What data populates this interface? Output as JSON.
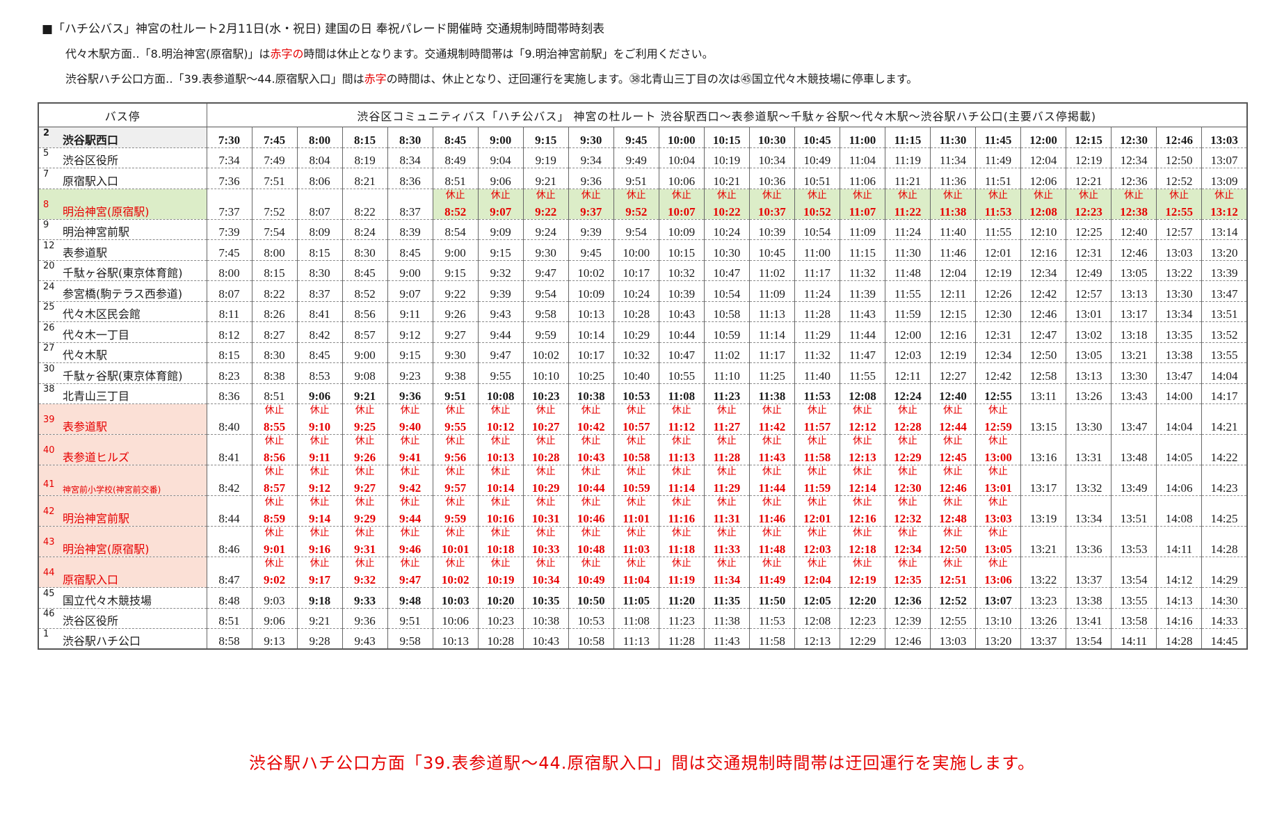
{
  "title": "■「ハチ公バス」神宮の杜ルート2月11日(水・祝日) 建国の日 奉祝パレード開催時 交通規制時間帯時刻表",
  "notes": {
    "line1": {
      "a": "代々木駅方面‥「8.明治神宮(原宿駅)」は",
      "red": "赤字の",
      "b": "時間は休止となります。交通規制時間帯は「9.明治神宮前駅」をご利用ください。"
    },
    "line2": {
      "a": "渋谷駅ハチ公口方面‥「39.表参道駅～44.原宿駅入口」間は",
      "red": "赤字",
      "b": "の時間は、休止となり、迂回運行を実施します。㊳北青山三丁目の次は㊺国立代々木競技場に停車します。"
    }
  },
  "table": {
    "stop_header": "バス停",
    "route_header": "渋谷区コミュニティバス「ハチ公バス」 神宮の杜ルート 渋谷駅西口～表参道駅～千駄ヶ谷駅～代々木駅～渋谷駅ハチ公口(主要バス停掲載)",
    "suspended_label": "休止",
    "rows": [
      {
        "no": "2",
        "name": "渋谷駅西口",
        "style": "grey",
        "first": true,
        "bold_from": 0,
        "bold_to": 23,
        "susp_from": -1,
        "susp_to": -1,
        "times": [
          "7:30",
          "7:45",
          "8:00",
          "8:15",
          "8:30",
          "8:45",
          "9:00",
          "9:15",
          "9:30",
          "9:45",
          "10:00",
          "10:15",
          "10:30",
          "10:45",
          "11:00",
          "11:15",
          "11:30",
          "11:45",
          "12:00",
          "12:15",
          "12:30",
          "12:46",
          "13:03"
        ]
      },
      {
        "no": "5",
        "name": "渋谷区役所",
        "style": "",
        "bold_from": -1,
        "bold_to": -1,
        "susp_from": -1,
        "susp_to": -1,
        "times": [
          "7:34",
          "7:49",
          "8:04",
          "8:19",
          "8:34",
          "8:49",
          "9:04",
          "9:19",
          "9:34",
          "9:49",
          "10:04",
          "10:19",
          "10:34",
          "10:49",
          "11:04",
          "11:19",
          "11:34",
          "11:49",
          "12:04",
          "12:19",
          "12:34",
          "12:50",
          "13:07"
        ]
      },
      {
        "no": "7",
        "name": "原宿駅入口",
        "style": "",
        "bold_from": -1,
        "bold_to": -1,
        "susp_from": -1,
        "susp_to": -1,
        "times": [
          "7:36",
          "7:51",
          "8:06",
          "8:21",
          "8:36",
          "8:51",
          "9:06",
          "9:21",
          "9:36",
          "9:51",
          "10:06",
          "10:21",
          "10:36",
          "10:51",
          "11:06",
          "11:21",
          "11:36",
          "11:51",
          "12:06",
          "12:21",
          "12:36",
          "12:52",
          "13:09"
        ]
      },
      {
        "no": "8",
        "name": "明治神宮(原宿駅)",
        "style": "green",
        "bold_from": -1,
        "bold_to": -1,
        "susp_from": 5,
        "susp_to": 22,
        "tall": true,
        "times": [
          "7:37",
          "7:52",
          "8:07",
          "8:22",
          "8:37",
          "8:52",
          "9:07",
          "9:22",
          "9:37",
          "9:52",
          "10:07",
          "10:22",
          "10:37",
          "10:52",
          "11:07",
          "11:22",
          "11:38",
          "11:53",
          "12:08",
          "12:23",
          "12:38",
          "12:55",
          "13:12"
        ]
      },
      {
        "no": "9",
        "name": "明治神宮前駅",
        "style": "",
        "bold_from": -1,
        "bold_to": -1,
        "susp_from": -1,
        "susp_to": -1,
        "times": [
          "7:39",
          "7:54",
          "8:09",
          "8:24",
          "8:39",
          "8:54",
          "9:09",
          "9:24",
          "9:39",
          "9:54",
          "10:09",
          "10:24",
          "10:39",
          "10:54",
          "11:09",
          "11:24",
          "11:40",
          "11:55",
          "12:10",
          "12:25",
          "12:40",
          "12:57",
          "13:14"
        ]
      },
      {
        "no": "12",
        "name": "表参道駅",
        "style": "",
        "bold_from": -1,
        "bold_to": -1,
        "susp_from": -1,
        "susp_to": -1,
        "times": [
          "7:45",
          "8:00",
          "8:15",
          "8:30",
          "8:45",
          "9:00",
          "9:15",
          "9:30",
          "9:45",
          "10:00",
          "10:15",
          "10:30",
          "10:45",
          "11:00",
          "11:15",
          "11:30",
          "11:46",
          "12:01",
          "12:16",
          "12:31",
          "12:46",
          "13:03",
          "13:20"
        ]
      },
      {
        "no": "20",
        "name": "千駄ヶ谷駅(東京体育館)",
        "style": "",
        "bold_from": -1,
        "bold_to": -1,
        "susp_from": -1,
        "susp_to": -1,
        "times": [
          "8:00",
          "8:15",
          "8:30",
          "8:45",
          "9:00",
          "9:15",
          "9:32",
          "9:47",
          "10:02",
          "10:17",
          "10:32",
          "10:47",
          "11:02",
          "11:17",
          "11:32",
          "11:48",
          "12:04",
          "12:19",
          "12:34",
          "12:49",
          "13:05",
          "13:22",
          "13:39"
        ]
      },
      {
        "no": "24",
        "name": "参宮橋(駒テラス西参道)",
        "style": "",
        "bold_from": -1,
        "bold_to": -1,
        "susp_from": -1,
        "susp_to": -1,
        "times": [
          "8:07",
          "8:22",
          "8:37",
          "8:52",
          "9:07",
          "9:22",
          "9:39",
          "9:54",
          "10:09",
          "10:24",
          "10:39",
          "10:54",
          "11:09",
          "11:24",
          "11:39",
          "11:55",
          "12:11",
          "12:26",
          "12:42",
          "12:57",
          "13:13",
          "13:30",
          "13:47"
        ]
      },
      {
        "no": "25",
        "name": "代々木区民会館",
        "style": "",
        "bold_from": -1,
        "bold_to": -1,
        "susp_from": -1,
        "susp_to": -1,
        "times": [
          "8:11",
          "8:26",
          "8:41",
          "8:56",
          "9:11",
          "9:26",
          "9:43",
          "9:58",
          "10:13",
          "10:28",
          "10:43",
          "10:58",
          "11:13",
          "11:28",
          "11:43",
          "11:59",
          "12:15",
          "12:30",
          "12:46",
          "13:01",
          "13:17",
          "13:34",
          "13:51"
        ]
      },
      {
        "no": "26",
        "name": "代々木一丁目",
        "style": "",
        "bold_from": -1,
        "bold_to": -1,
        "susp_from": -1,
        "susp_to": -1,
        "times": [
          "8:12",
          "8:27",
          "8:42",
          "8:57",
          "9:12",
          "9:27",
          "9:44",
          "9:59",
          "10:14",
          "10:29",
          "10:44",
          "10:59",
          "11:14",
          "11:29",
          "11:44",
          "12:00",
          "12:16",
          "12:31",
          "12:47",
          "13:02",
          "13:18",
          "13:35",
          "13:52"
        ]
      },
      {
        "no": "27",
        "name": "代々木駅",
        "style": "",
        "bold_from": -1,
        "bold_to": -1,
        "susp_from": -1,
        "susp_to": -1,
        "times": [
          "8:15",
          "8:30",
          "8:45",
          "9:00",
          "9:15",
          "9:30",
          "9:47",
          "10:02",
          "10:17",
          "10:32",
          "10:47",
          "11:02",
          "11:17",
          "11:32",
          "11:47",
          "12:03",
          "12:19",
          "12:34",
          "12:50",
          "13:05",
          "13:21",
          "13:38",
          "13:55"
        ]
      },
      {
        "no": "30",
        "name": "千駄ヶ谷駅(東京体育館)",
        "style": "",
        "bold_from": -1,
        "bold_to": -1,
        "susp_from": -1,
        "susp_to": -1,
        "times": [
          "8:23",
          "8:38",
          "8:53",
          "9:08",
          "9:23",
          "9:38",
          "9:55",
          "10:10",
          "10:25",
          "10:40",
          "10:55",
          "11:10",
          "11:25",
          "11:40",
          "11:55",
          "12:11",
          "12:27",
          "12:42",
          "12:58",
          "13:13",
          "13:30",
          "13:47",
          "14:04"
        ]
      },
      {
        "no": "38",
        "name": "北青山三丁目",
        "style": "",
        "bold_from": 2,
        "bold_to": 17,
        "susp_from": -1,
        "susp_to": -1,
        "times": [
          "8:36",
          "8:51",
          "9:06",
          "9:21",
          "9:36",
          "9:51",
          "10:08",
          "10:23",
          "10:38",
          "10:53",
          "11:08",
          "11:23",
          "11:38",
          "11:53",
          "12:08",
          "12:24",
          "12:40",
          "12:55",
          "13:11",
          "13:26",
          "13:43",
          "14:00",
          "14:17"
        ]
      },
      {
        "no": "39",
        "name": "表参道駅",
        "style": "pink",
        "bold_from": -1,
        "bold_to": -1,
        "susp_from": 1,
        "susp_to": 17,
        "tall": true,
        "times": [
          "8:40",
          "8:55",
          "9:10",
          "9:25",
          "9:40",
          "9:55",
          "10:12",
          "10:27",
          "10:42",
          "10:57",
          "11:12",
          "11:27",
          "11:42",
          "11:57",
          "12:12",
          "12:28",
          "12:44",
          "12:59",
          "13:15",
          "13:30",
          "13:47",
          "14:04",
          "14:21"
        ]
      },
      {
        "no": "40",
        "name": "表参道ヒルズ",
        "style": "pink",
        "bold_from": -1,
        "bold_to": -1,
        "susp_from": 1,
        "susp_to": 17,
        "tall": true,
        "times": [
          "8:41",
          "8:56",
          "9:11",
          "9:26",
          "9:41",
          "9:56",
          "10:13",
          "10:28",
          "10:43",
          "10:58",
          "11:13",
          "11:28",
          "11:43",
          "11:58",
          "12:13",
          "12:29",
          "12:45",
          "13:00",
          "13:16",
          "13:31",
          "13:48",
          "14:05",
          "14:22"
        ]
      },
      {
        "no": "41",
        "name": "神宮前小学校(神宮前交番)",
        "style": "pink",
        "bold_from": -1,
        "bold_to": -1,
        "susp_from": 1,
        "susp_to": 17,
        "tall": true,
        "small": true,
        "times": [
          "8:42",
          "8:57",
          "9:12",
          "9:27",
          "9:42",
          "9:57",
          "10:14",
          "10:29",
          "10:44",
          "10:59",
          "11:14",
          "11:29",
          "11:44",
          "11:59",
          "12:14",
          "12:30",
          "12:46",
          "13:01",
          "13:17",
          "13:32",
          "13:49",
          "14:06",
          "14:23"
        ]
      },
      {
        "no": "42",
        "name": "明治神宮前駅",
        "style": "pink",
        "bold_from": -1,
        "bold_to": -1,
        "susp_from": 1,
        "susp_to": 17,
        "tall": true,
        "times": [
          "8:44",
          "8:59",
          "9:14",
          "9:29",
          "9:44",
          "9:59",
          "10:16",
          "10:31",
          "10:46",
          "11:01",
          "11:16",
          "11:31",
          "11:46",
          "12:01",
          "12:16",
          "12:32",
          "12:48",
          "13:03",
          "13:19",
          "13:34",
          "13:51",
          "14:08",
          "14:25"
        ]
      },
      {
        "no": "43",
        "name": "明治神宮(原宿駅)",
        "style": "pink",
        "bold_from": -1,
        "bold_to": -1,
        "susp_from": 1,
        "susp_to": 17,
        "tall": true,
        "times": [
          "8:46",
          "9:01",
          "9:16",
          "9:31",
          "9:46",
          "10:01",
          "10:18",
          "10:33",
          "10:48",
          "11:03",
          "11:18",
          "11:33",
          "11:48",
          "12:03",
          "12:18",
          "12:34",
          "12:50",
          "13:05",
          "13:21",
          "13:36",
          "13:53",
          "14:11",
          "14:28"
        ]
      },
      {
        "no": "44",
        "name": "原宿駅入口",
        "style": "pink",
        "bold_from": -1,
        "bold_to": -1,
        "susp_from": 1,
        "susp_to": 17,
        "tall": true,
        "times": [
          "8:47",
          "9:02",
          "9:17",
          "9:32",
          "9:47",
          "10:02",
          "10:19",
          "10:34",
          "10:49",
          "11:04",
          "11:19",
          "11:34",
          "11:49",
          "12:04",
          "12:19",
          "12:35",
          "12:51",
          "13:06",
          "13:22",
          "13:37",
          "13:54",
          "14:12",
          "14:29"
        ]
      },
      {
        "no": "45",
        "name": "国立代々木競技場",
        "style": "",
        "bold_from": 2,
        "bold_to": 17,
        "susp_from": -1,
        "susp_to": -1,
        "times": [
          "8:48",
          "9:03",
          "9:18",
          "9:33",
          "9:48",
          "10:03",
          "10:20",
          "10:35",
          "10:50",
          "11:05",
          "11:20",
          "11:35",
          "11:50",
          "12:05",
          "12:20",
          "12:36",
          "12:52",
          "13:07",
          "13:23",
          "13:38",
          "13:55",
          "14:13",
          "14:30"
        ]
      },
      {
        "no": "46",
        "name": "渋谷区役所",
        "style": "",
        "bold_from": -1,
        "bold_to": -1,
        "susp_from": -1,
        "susp_to": -1,
        "times": [
          "8:51",
          "9:06",
          "9:21",
          "9:36",
          "9:51",
          "10:06",
          "10:23",
          "10:38",
          "10:53",
          "11:08",
          "11:23",
          "11:38",
          "11:53",
          "12:08",
          "12:23",
          "12:39",
          "12:55",
          "13:10",
          "13:26",
          "13:41",
          "13:58",
          "14:16",
          "14:33"
        ]
      },
      {
        "no": "1",
        "name": "渋谷駅ハチ公口",
        "style": "",
        "bold_from": -1,
        "bold_to": -1,
        "susp_from": -1,
        "susp_to": -1,
        "times": [
          "8:58",
          "9:13",
          "9:28",
          "9:43",
          "9:58",
          "10:13",
          "10:28",
          "10:43",
          "10:58",
          "11:13",
          "11:28",
          "11:43",
          "11:58",
          "12:13",
          "12:29",
          "12:46",
          "13:03",
          "13:20",
          "13:37",
          "13:54",
          "14:11",
          "14:28",
          "14:45"
        ]
      }
    ]
  },
  "footer": "渋谷駅ハチ公口方面「39.表参道駅～44.原宿駅入口」間は交通規制時間帯は迂回運行を実施します。",
  "colors": {
    "red": "#e60000",
    "green_bg": "#dcedc8",
    "pink_bg": "#fbe0d6",
    "grey_bg": "#efefef"
  }
}
